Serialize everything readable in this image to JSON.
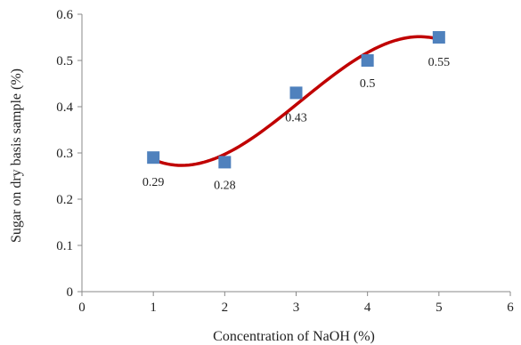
{
  "chart_data": {
    "type": "scatter",
    "xlabel": "Concentration of NaOH (%)",
    "ylabel": "Sugar on dry basis sample (%)",
    "xlim": [
      0,
      6
    ],
    "ylim": [
      0,
      0.6
    ],
    "x_ticks": [
      "0",
      "1",
      "2",
      "3",
      "4",
      "5",
      "6"
    ],
    "y_ticks": [
      "0",
      "0.1",
      "0.2",
      "0.3",
      "0.4",
      "0.5",
      "0.6"
    ],
    "grid": false,
    "legend": "none",
    "series": [
      {
        "marker": "square",
        "color": "#4f81bd",
        "points": [
          {
            "x": 1,
            "y": 0.29,
            "label": "0.29"
          },
          {
            "x": 2,
            "y": 0.28,
            "label": "0.28"
          },
          {
            "x": 3,
            "y": 0.43,
            "label": "0.43"
          },
          {
            "x": 4,
            "y": 0.5,
            "label": "0.5"
          },
          {
            "x": 5,
            "y": 0.55,
            "label": "0.55"
          }
        ]
      }
    ],
    "trendline": {
      "type": "polynomial",
      "order": 3,
      "color": "#c00000",
      "x_range": [
        1,
        5
      ]
    }
  }
}
